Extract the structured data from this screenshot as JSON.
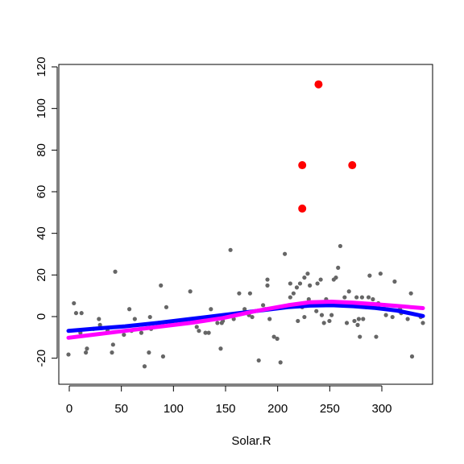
{
  "chart_data": {
    "type": "scatter",
    "title": "",
    "xlabel": "Solar.R",
    "ylabel": "",
    "xlim": [
      8,
      334
    ],
    "ylim": [
      -32,
      122
    ],
    "x_ticks": [
      0,
      50,
      100,
      150,
      200,
      250,
      300
    ],
    "y_ticks": [
      -20,
      0,
      20,
      40,
      60,
      80,
      100,
      120
    ],
    "grid": false,
    "legend": "none",
    "colors": {
      "points": "#666666",
      "outliers": "#ff0000",
      "smooth_1": "#0000ff",
      "smooth_2": "#ff00ff",
      "frame": "#000000"
    },
    "points": [
      [
        8,
        -21
      ],
      [
        13,
        5
      ],
      [
        15,
        0
      ],
      [
        19,
        -10
      ],
      [
        20,
        0
      ],
      [
        24,
        -20
      ],
      [
        25,
        -18
      ],
      [
        31,
        -8
      ],
      [
        36,
        -3
      ],
      [
        37,
        -6
      ],
      [
        44,
        -9
      ],
      [
        48,
        -20
      ],
      [
        49,
        -16
      ],
      [
        51,
        21
      ],
      [
        59,
        -11
      ],
      [
        64,
        2
      ],
      [
        66,
        -9
      ],
      [
        69,
        -3
      ],
      [
        75,
        -10
      ],
      [
        78,
        -27
      ],
      [
        82,
        -20
      ],
      [
        83,
        -2
      ],
      [
        84,
        -8
      ],
      [
        91,
        -5
      ],
      [
        93,
        14
      ],
      [
        95,
        -22
      ],
      [
        98,
        3
      ],
      [
        103,
        -6
      ],
      [
        112,
        -4
      ],
      [
        115,
        -5
      ],
      [
        120,
        11
      ],
      [
        126,
        -7
      ],
      [
        128,
        -9
      ],
      [
        131,
        -3
      ],
      [
        134,
        -10
      ],
      [
        137,
        -10
      ],
      [
        139,
        2
      ],
      [
        145,
        -5
      ],
      [
        148,
        -18
      ],
      [
        149,
        -5
      ],
      [
        150,
        -4
      ],
      [
        157,
        32
      ],
      [
        160,
        -3
      ],
      [
        165,
        10
      ],
      [
        170,
        2
      ],
      [
        174,
        -1
      ],
      [
        175,
        10
      ],
      [
        177,
        -2
      ],
      [
        183,
        -24
      ],
      [
        187,
        4
      ],
      [
        189,
        2
      ],
      [
        191,
        14
      ],
      [
        191,
        17
      ],
      [
        193,
        -3
      ],
      [
        197,
        -12
      ],
      [
        200,
        -13
      ],
      [
        203,
        -25
      ],
      [
        207,
        30
      ],
      [
        212,
        8
      ],
      [
        212,
        15
      ],
      [
        215,
        10
      ],
      [
        218,
        13
      ],
      [
        219,
        -4
      ],
      [
        221,
        15
      ],
      [
        223,
        3
      ],
      [
        225,
        18
      ],
      [
        225,
        -2
      ],
      [
        228,
        20
      ],
      [
        229,
        7
      ],
      [
        230,
        14
      ],
      [
        236,
        1
      ],
      [
        237,
        15
      ],
      [
        239,
        4
      ],
      [
        240,
        17
      ],
      [
        241,
        -1
      ],
      [
        243,
        -5
      ],
      [
        245,
        7
      ],
      [
        248,
        -4
      ],
      [
        250,
        -1
      ],
      [
        252,
        17
      ],
      [
        254,
        18
      ],
      [
        256,
        23
      ],
      [
        258,
        34
      ],
      [
        260,
        5
      ],
      [
        262,
        8
      ],
      [
        264,
        -5
      ],
      [
        266,
        11
      ],
      [
        268,
        4
      ],
      [
        271,
        -4
      ],
      [
        273,
        8
      ],
      [
        274,
        -6
      ],
      [
        275,
        -3
      ],
      [
        276,
        -12
      ],
      [
        278,
        8
      ],
      [
        279,
        -3
      ],
      [
        282,
        3
      ],
      [
        284,
        8
      ],
      [
        285,
        19
      ],
      [
        288,
        7
      ],
      [
        291,
        -12
      ],
      [
        293,
        5
      ],
      [
        295,
        20
      ],
      [
        299,
        4
      ],
      [
        300,
        -1
      ],
      [
        306,
        -2
      ],
      [
        308,
        16
      ],
      [
        313,
        2
      ],
      [
        314,
        0
      ],
      [
        320,
        -3
      ],
      [
        323,
        10
      ],
      [
        324,
        -22
      ],
      [
        332,
        -2
      ],
      [
        334,
        -5
      ]
    ],
    "outliers": [
      [
        238,
        116
      ],
      [
        223,
        75
      ],
      [
        269,
        75
      ],
      [
        223,
        53
      ]
    ],
    "series": [
      {
        "x": [
          8,
          30,
          60,
          90,
          120,
          150,
          180,
          210,
          230,
          250,
          270,
          290,
          310,
          334
        ],
        "y": [
          -9,
          -8,
          -6.7,
          -5,
          -3,
          -1,
          1,
          3,
          3.8,
          4,
          3.5,
          2.6,
          1.3,
          -1.5
        ]
      },
      {
        "x": [
          8,
          30,
          60,
          90,
          120,
          150,
          180,
          210,
          230,
          250,
          270,
          290,
          310,
          334
        ],
        "y": [
          -12.5,
          -11,
          -9,
          -7,
          -5,
          -2.5,
          1,
          4,
          5.5,
          5.8,
          5.3,
          4.5,
          3.6,
          2.5
        ]
      }
    ]
  }
}
